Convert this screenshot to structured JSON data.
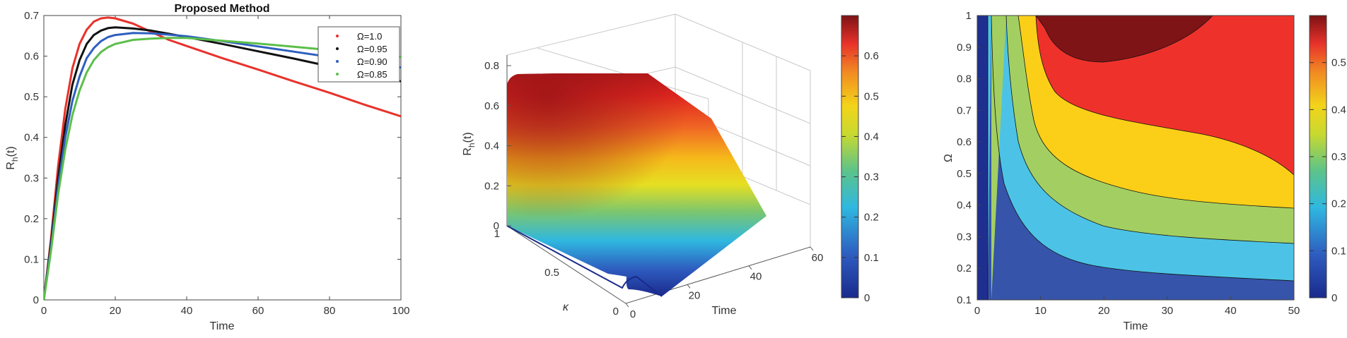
{
  "chart_data": [
    {
      "type": "line",
      "title": "Proposed Method",
      "xlabel": "Time",
      "ylabel": "R_h(t)",
      "xlim": [
        0,
        100
      ],
      "ylim": [
        0,
        0.7
      ],
      "xticks": [
        "0",
        "20",
        "40",
        "60",
        "80",
        "100"
      ],
      "yticks": [
        "0",
        "0.1",
        "0.2",
        "0.3",
        "0.4",
        "0.5",
        "0.6",
        "0.7"
      ],
      "legend_position": "top-right",
      "x": [
        0,
        2,
        4,
        6,
        8,
        10,
        12,
        14,
        16,
        18,
        20,
        25,
        30,
        35,
        40,
        50,
        60,
        70,
        80,
        90,
        100
      ],
      "series": [
        {
          "name": "Ω=1.0",
          "color": "#e8322b",
          "values": [
            0,
            0.15,
            0.33,
            0.47,
            0.57,
            0.63,
            0.665,
            0.685,
            0.693,
            0.695,
            0.693,
            0.68,
            0.66,
            0.64,
            0.625,
            0.595,
            0.567,
            0.538,
            0.51,
            0.48,
            0.452
          ]
        },
        {
          "name": "Ω=0.95",
          "color": "#111111",
          "values": [
            0,
            0.14,
            0.3,
            0.43,
            0.53,
            0.59,
            0.63,
            0.652,
            0.663,
            0.669,
            0.671,
            0.668,
            0.663,
            0.655,
            0.647,
            0.63,
            0.612,
            0.594,
            0.575,
            0.557,
            0.538
          ]
        },
        {
          "name": "Ω=0.90",
          "color": "#2e5fbf",
          "values": [
            0,
            0.13,
            0.28,
            0.4,
            0.49,
            0.55,
            0.595,
            0.62,
            0.637,
            0.647,
            0.652,
            0.657,
            0.656,
            0.653,
            0.649,
            0.637,
            0.624,
            0.611,
            0.598,
            0.585,
            0.572
          ]
        },
        {
          "name": "Ω=0.85",
          "color": "#5bbf4a",
          "values": [
            0,
            0.12,
            0.26,
            0.37,
            0.455,
            0.515,
            0.56,
            0.59,
            0.61,
            0.622,
            0.63,
            0.64,
            0.643,
            0.645,
            0.645,
            0.638,
            0.631,
            0.623,
            0.615,
            0.607,
            0.598
          ]
        }
      ]
    },
    {
      "type": "surface",
      "xlabel": "Time",
      "ylabel": "κ",
      "zlabel": "R_h(t)",
      "xticks": [
        "0",
        "20",
        "40",
        "60"
      ],
      "yticks": [
        "0",
        "0.5",
        "1"
      ],
      "zticks": [
        "0",
        "0.2",
        "0.4",
        "0.6",
        "0.8"
      ],
      "xlim": [
        0,
        60
      ],
      "ylim": [
        0,
        1
      ],
      "zlim": [
        0,
        0.8
      ],
      "colorbar_ticks": [
        "0",
        "0.1",
        "0.2",
        "0.3",
        "0.4",
        "0.5",
        "0.6"
      ],
      "colorbar_range": [
        0,
        0.7
      ]
    },
    {
      "type": "contour",
      "xlabel": "Time",
      "ylabel": "Ω",
      "xlim": [
        0,
        50
      ],
      "ylim": [
        0.1,
        1
      ],
      "xticks": [
        "0",
        "10",
        "20",
        "30",
        "40",
        "50"
      ],
      "yticks": [
        "0.1",
        "0.2",
        "0.3",
        "0.4",
        "0.5",
        "0.6",
        "0.7",
        "0.8",
        "0.9",
        "1"
      ],
      "levels": [
        0.1,
        0.2,
        0.3,
        0.4,
        0.5,
        0.6
      ],
      "colorbar_ticks": [
        "0",
        "0.1",
        "0.2",
        "0.3",
        "0.4",
        "0.5"
      ],
      "colorbar_range": [
        0,
        0.6
      ]
    }
  ]
}
